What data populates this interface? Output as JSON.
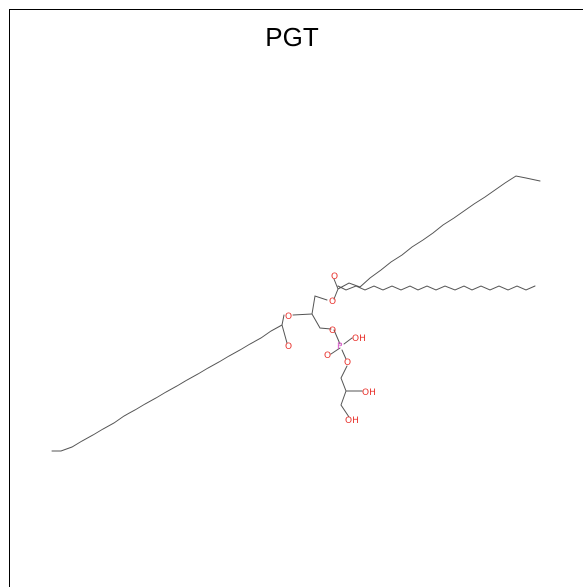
{
  "title": "PGT",
  "colors": {
    "bond": "#555555",
    "carbon_label": "#6cbf3c",
    "oxygen": "#e8302a",
    "phosphorus": "#d84fc9"
  },
  "atoms": {
    "ester_o_upper": "O",
    "carbonyl_o_upper": "O",
    "ester_o_lower": "O",
    "carbonyl_o_lower": "O",
    "phosphate_o_link": "O",
    "phosphorus": "P",
    "phosphate_oh": "OH",
    "phosphate_o_double": "O",
    "phosphate_o_ester": "O",
    "glycerol_oh_2": "OH",
    "glycerol_oh_3": "OH"
  }
}
